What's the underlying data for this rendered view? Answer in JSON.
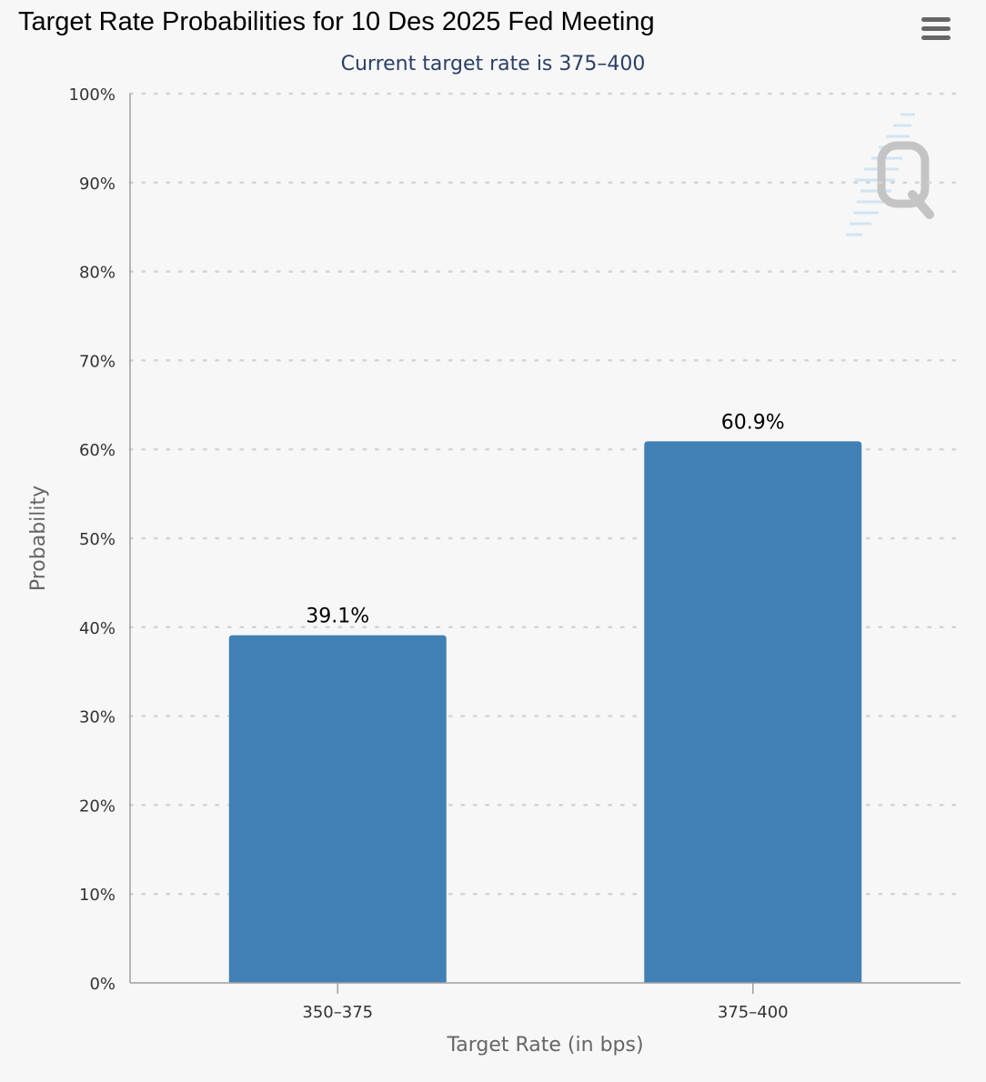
{
  "header": {
    "title": "Target Rate Probabilities for 10 Des 2025 Fed Meeting",
    "subtitle": "Current target rate is 375–400",
    "menu_icon": "hamburger-menu-icon"
  },
  "watermark_icon": "cme-q-logo-icon",
  "colors": {
    "bar": "#4180b5",
    "grid": "#d4d4d4",
    "axis": "#a0a0a0",
    "subtitle": "#2b3f66"
  },
  "chart_data": {
    "type": "bar",
    "title": "Target Rate Probabilities for 10 Des 2025 Fed Meeting",
    "subtitle": "Current target rate is 375–400",
    "xlabel": "Target Rate (in bps)",
    "ylabel": "Probability",
    "categories": [
      "350–375",
      "375–400"
    ],
    "values": [
      39.1,
      60.9
    ],
    "data_labels": [
      "39.1%",
      "60.9%"
    ],
    "ylim": [
      0,
      100
    ],
    "yticks": [
      0,
      10,
      20,
      30,
      40,
      50,
      60,
      70,
      80,
      90,
      100
    ],
    "ytick_labels": [
      "0%",
      "10%",
      "20%",
      "30%",
      "40%",
      "50%",
      "60%",
      "70%",
      "80%",
      "90%",
      "100%"
    ],
    "grid": true,
    "legend": "none"
  }
}
